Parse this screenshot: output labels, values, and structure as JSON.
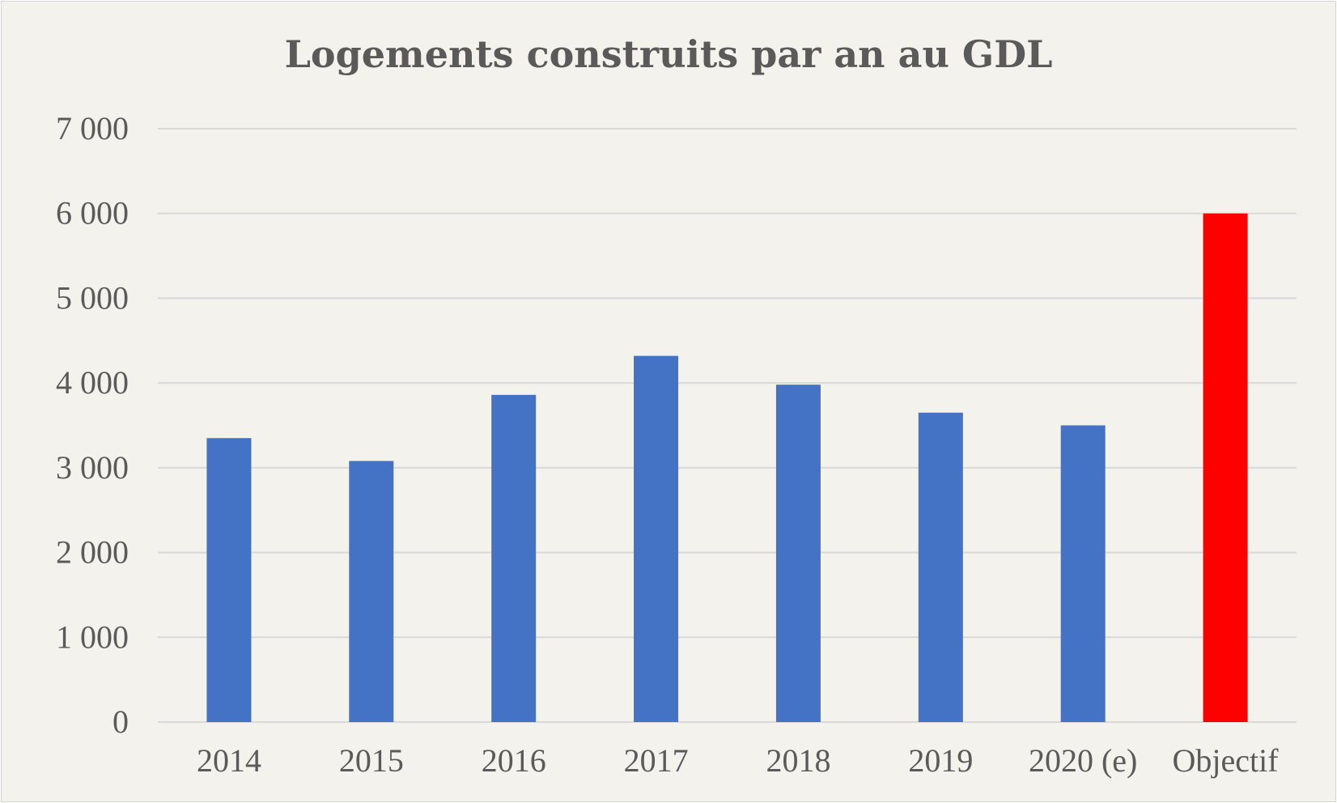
{
  "chart_data": {
    "type": "bar",
    "title": "Logements construits par an au GDL",
    "xlabel": "",
    "ylabel": "",
    "categories": [
      "2014",
      "2015",
      "2016",
      "2017",
      "2018",
      "2019",
      "2020 (e)",
      "Objectif"
    ],
    "values": [
      3350,
      3080,
      3860,
      4320,
      3980,
      3650,
      3500,
      6000
    ],
    "bar_colors": [
      "#4472c4",
      "#4472c4",
      "#4472c4",
      "#4472c4",
      "#4472c4",
      "#4472c4",
      "#4472c4",
      "#ff0000"
    ],
    "ylim": [
      0,
      7000
    ],
    "yticks": [
      0,
      1000,
      2000,
      3000,
      4000,
      5000,
      6000,
      7000
    ],
    "ytick_labels": [
      "0",
      "1 000",
      "2 000",
      "3 000",
      "4 000",
      "5 000",
      "6 000",
      "7 000"
    ],
    "grid": true,
    "legend": "none"
  }
}
